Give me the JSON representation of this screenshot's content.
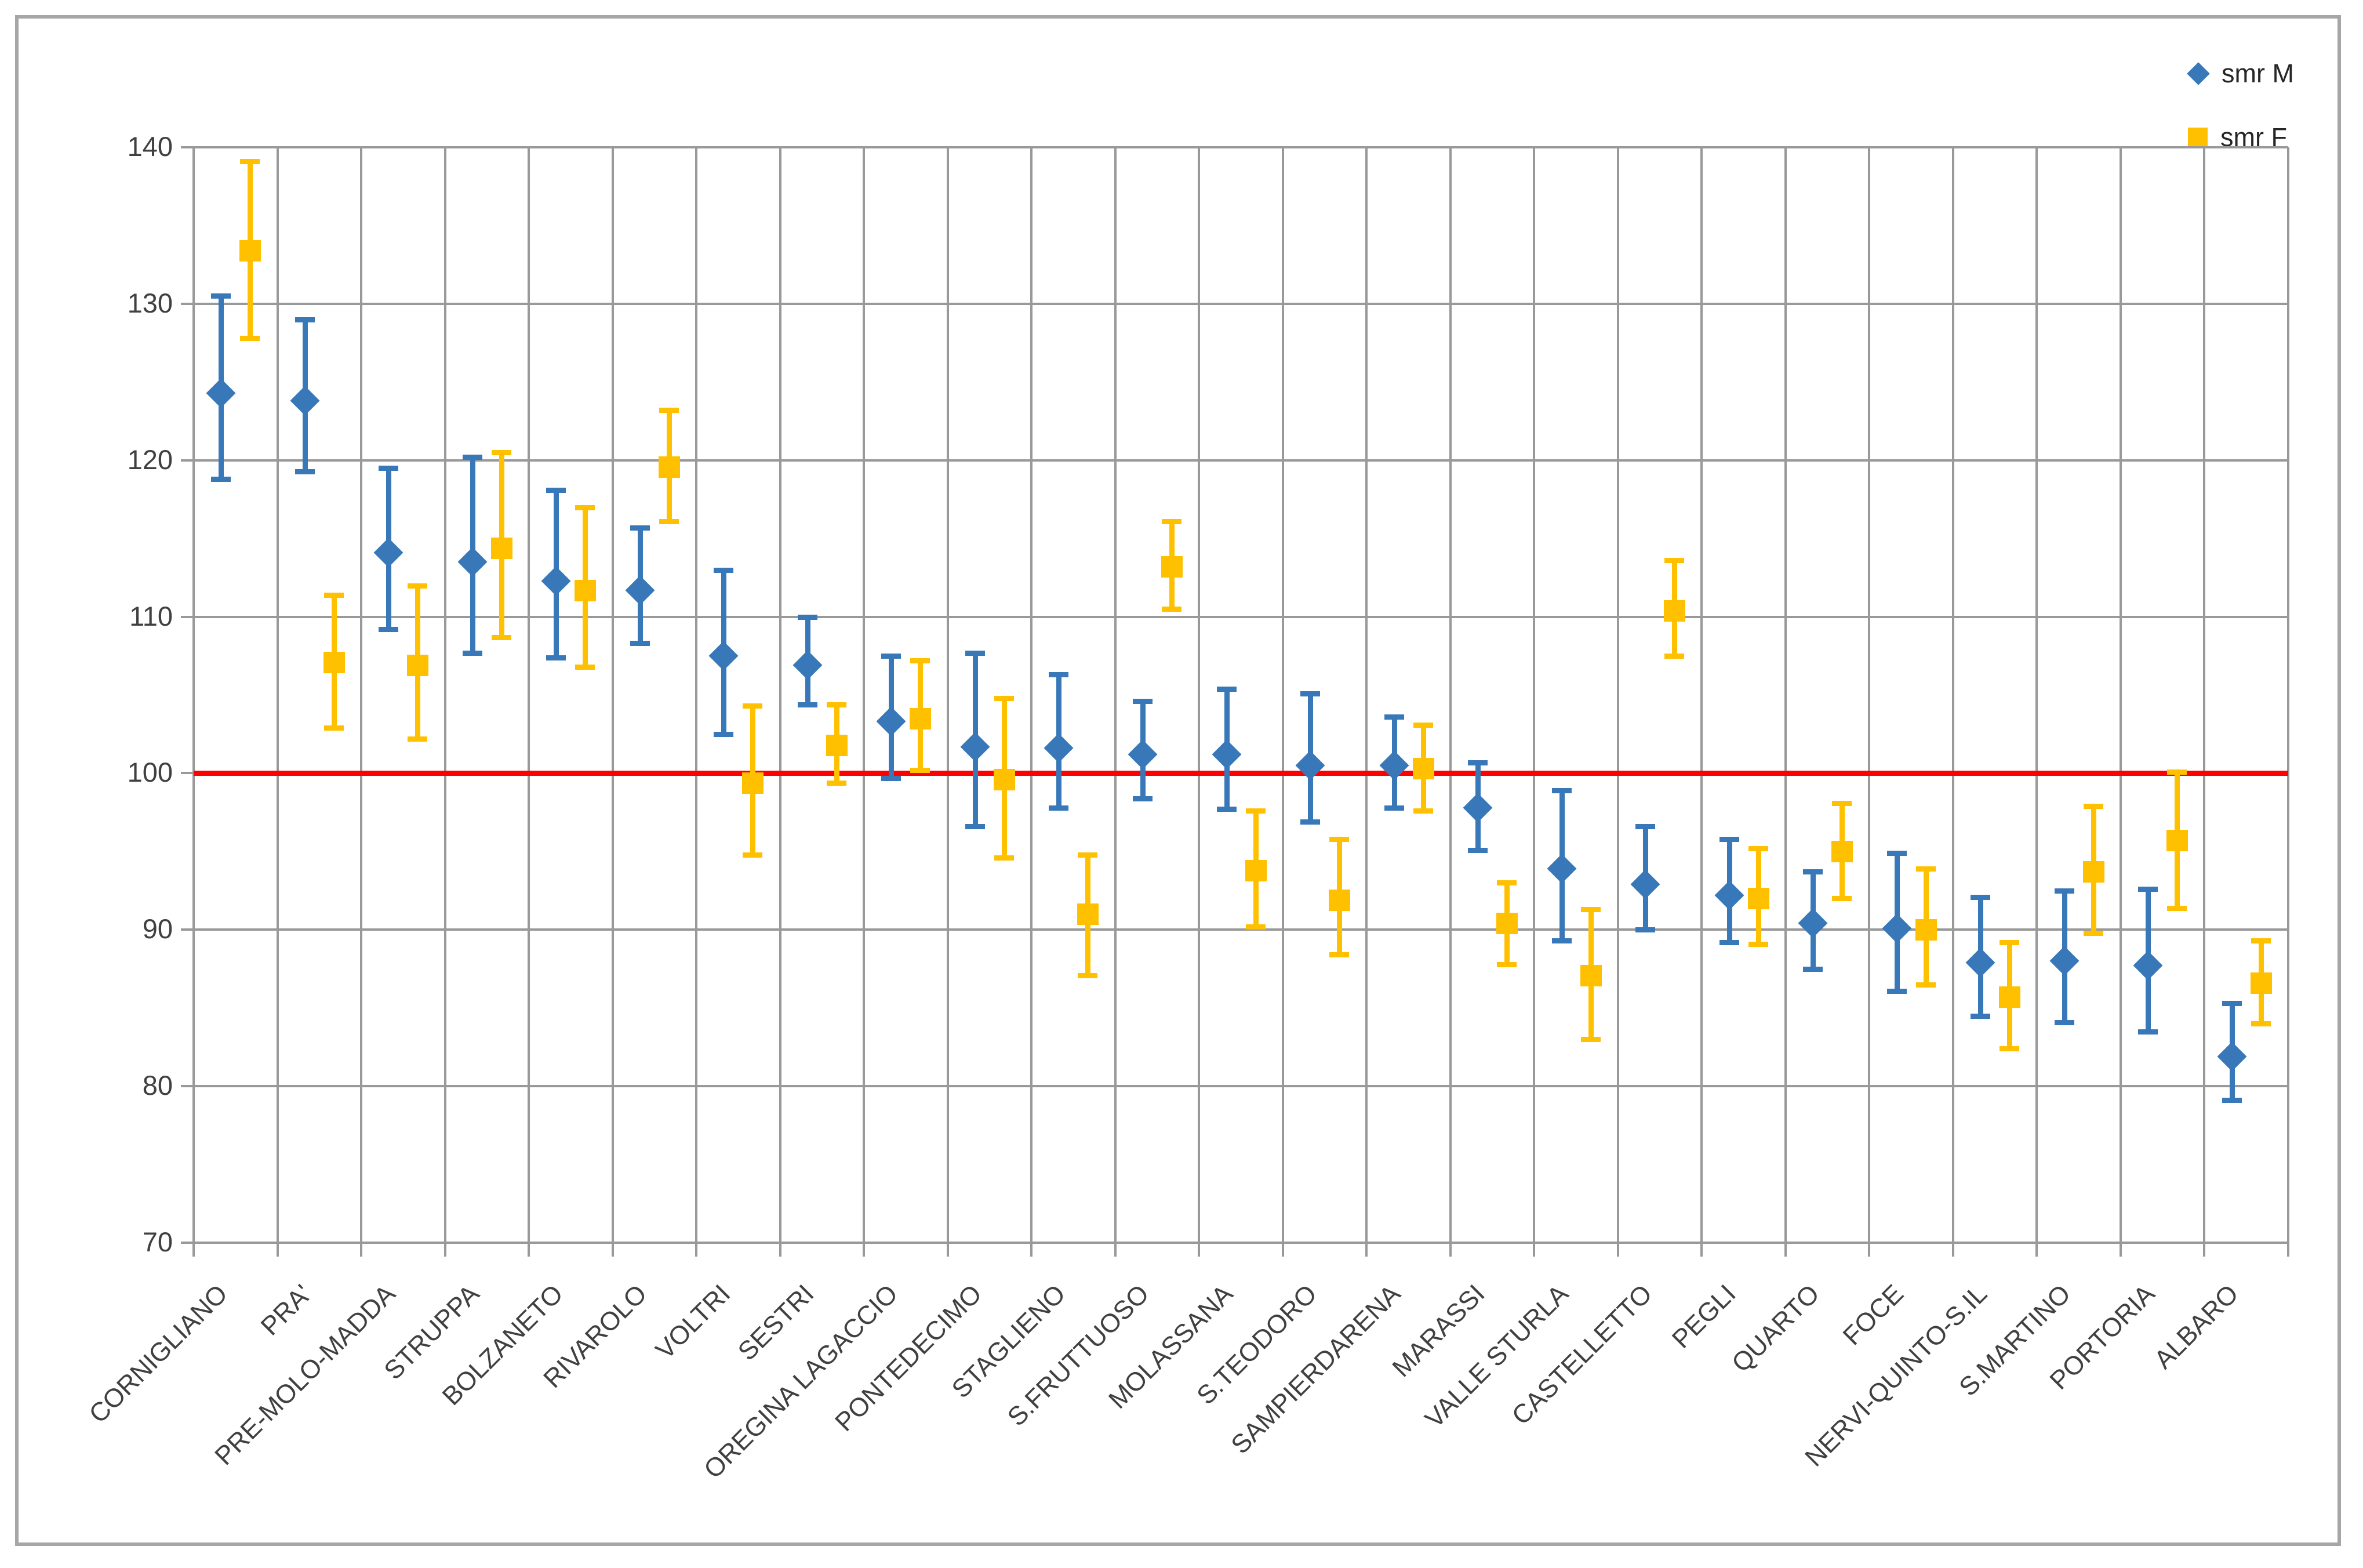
{
  "chart_data": {
    "type": "scatter",
    "title": "",
    "xlabel": "",
    "ylabel": "",
    "grid": true,
    "legend_position": "top-right",
    "y_axis": {
      "min": 70,
      "max": 140,
      "tick_step": 10,
      "ticks": [
        "140",
        "130",
        "120",
        "110",
        "100",
        "90",
        "80",
        "70"
      ]
    },
    "reference_line": {
      "y": 100,
      "color": "#ff0000"
    },
    "categories": [
      "CORNIGLIANO",
      "PRA'",
      "PRE-MOLO-MADDA",
      "STRUPPA",
      "BOLZANETO",
      "RIVAROLO",
      "VOLTRI",
      "SESTRI",
      "OREGINA LAGACCIO",
      "PONTEDECIMO",
      "STAGLIENO",
      "S.FRUTTUOSO",
      "MOLASSANA",
      "S.TEODORO",
      "SAMPIERDARENA",
      "MARASSI",
      "VALLE STURLA",
      "CASTELLETTO",
      "PEGLI",
      "QUARTO",
      "FOCE",
      "NERVI-QUINTO-S.IL",
      "S.MARTINO",
      "PORTORIA",
      "ALBARO"
    ],
    "series": [
      {
        "name": "smr M",
        "marker": "diamond",
        "color": "#3878b8",
        "values": [
          124.3,
          123.8,
          114.1,
          113.5,
          112.3,
          111.7,
          107.5,
          106.9,
          103.3,
          101.7,
          101.6,
          101.2,
          101.2,
          100.5,
          100.5,
          97.8,
          93.9,
          92.9,
          92.2,
          90.4,
          90.1,
          87.9,
          88.0,
          87.7,
          81.9
        ],
        "ci_low": [
          118.8,
          119.3,
          109.2,
          107.7,
          107.4,
          108.3,
          102.5,
          104.4,
          99.7,
          96.6,
          97.8,
          98.4,
          97.7,
          96.9,
          97.8,
          95.1,
          89.3,
          90.0,
          89.2,
          87.5,
          86.1,
          84.5,
          84.1,
          83.5,
          79.1
        ],
        "ci_high": [
          130.5,
          129.0,
          119.5,
          120.2,
          118.1,
          115.7,
          113.0,
          110.0,
          107.5,
          107.7,
          106.3,
          104.6,
          105.4,
          105.1,
          103.6,
          100.7,
          98.9,
          96.6,
          95.8,
          93.7,
          94.9,
          92.1,
          92.5,
          92.6,
          85.3
        ]
      },
      {
        "name": "smr F",
        "marker": "square",
        "color": "#ffc000",
        "values": [
          133.4,
          107.1,
          106.9,
          114.4,
          111.7,
          119.6,
          99.4,
          101.8,
          103.5,
          99.6,
          91.0,
          113.2,
          93.8,
          91.9,
          100.3,
          90.4,
          87.1,
          110.4,
          92.0,
          95.0,
          90.0,
          85.7,
          93.7,
          95.7,
          86.6
        ],
        "ci_low": [
          127.8,
          102.9,
          102.2,
          108.7,
          106.8,
          116.1,
          94.8,
          99.4,
          100.2,
          94.6,
          87.1,
          110.5,
          90.2,
          88.4,
          97.6,
          87.8,
          83.0,
          107.5,
          89.1,
          92.0,
          86.5,
          82.4,
          89.8,
          91.4,
          84.0
        ],
        "ci_high": [
          139.1,
          111.4,
          112.0,
          120.5,
          117.0,
          123.2,
          104.3,
          104.4,
          107.2,
          104.8,
          94.8,
          116.1,
          97.6,
          95.8,
          103.1,
          93.0,
          91.3,
          113.6,
          95.2,
          98.1,
          93.9,
          89.2,
          97.9,
          100.1,
          89.3
        ]
      }
    ],
    "colors": {
      "grid": "#999999",
      "plot_border": "#999999",
      "axis_text": "#404040"
    }
  },
  "legend": {
    "male_label": "smr M",
    "female_label": "smr F"
  }
}
